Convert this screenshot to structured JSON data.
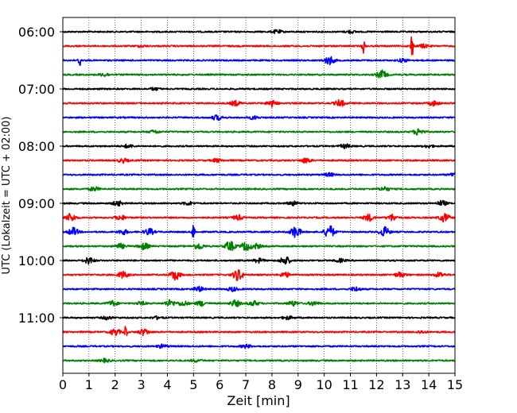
{
  "chart_data": {
    "type": "line",
    "title": "",
    "xlabel": "Zeit  [min]",
    "ylabel": "UTC (Lokalzeit = UTC + 02:00)",
    "xlim": [
      0,
      15
    ],
    "x_ticks": [
      "0",
      "1",
      "2",
      "3",
      "4",
      "5",
      "6",
      "7",
      "8",
      "9",
      "10",
      "11",
      "12",
      "13",
      "14",
      "15"
    ],
    "vertical_grid": "dotted",
    "trace_interval_minutes": 15,
    "start_time": "06:00",
    "y_tick_labels": [
      "06:00",
      "07:00",
      "08:00",
      "09:00",
      "10:00",
      "11:00"
    ],
    "trace_colors": [
      "#000000",
      "#ff0000",
      "#0000ff",
      "#008000"
    ],
    "traces": [
      {
        "label": "06:00",
        "events": [
          {
            "t": 8.2,
            "a": 2
          },
          {
            "t": 11.0,
            "a": 1.5
          }
        ]
      },
      {
        "label": "06:15",
        "events": [
          {
            "t": 11.5,
            "a": 9
          },
          {
            "t": 13.35,
            "a": 16
          },
          {
            "t": 13.8,
            "a": 2
          },
          {
            "t": 3.0,
            "a": 1
          }
        ]
      },
      {
        "label": "06:30",
        "events": [
          {
            "t": 0.65,
            "a": 9
          },
          {
            "t": 10.2,
            "a": 5
          },
          {
            "t": 13.0,
            "a": 2
          }
        ]
      },
      {
        "label": "06:45",
        "events": [
          {
            "t": 1.6,
            "a": 2
          },
          {
            "t": 12.2,
            "a": 5
          }
        ]
      },
      {
        "label": "07:00",
        "events": [
          {
            "t": 3.5,
            "a": 1.5
          }
        ]
      },
      {
        "label": "07:15",
        "events": [
          {
            "t": 6.6,
            "a": 3
          },
          {
            "t": 8.0,
            "a": 4
          },
          {
            "t": 10.6,
            "a": 4
          },
          {
            "t": 14.2,
            "a": 3
          }
        ]
      },
      {
        "label": "07:30",
        "events": [
          {
            "t": 5.9,
            "a": 3
          },
          {
            "t": 7.3,
            "a": 2
          }
        ]
      },
      {
        "label": "07:45",
        "events": [
          {
            "t": 13.6,
            "a": 4
          },
          {
            "t": 3.5,
            "a": 2
          }
        ]
      },
      {
        "label": "08:00",
        "events": [
          {
            "t": 2.5,
            "a": 2
          },
          {
            "t": 10.8,
            "a": 2.5
          },
          {
            "t": 14.0,
            "a": 1.5
          }
        ]
      },
      {
        "label": "08:15",
        "events": [
          {
            "t": 2.3,
            "a": 2.5
          },
          {
            "t": 5.9,
            "a": 2
          },
          {
            "t": 9.3,
            "a": 3
          }
        ]
      },
      {
        "label": "08:30",
        "events": [
          {
            "t": 10.2,
            "a": 2
          },
          {
            "t": 15.0,
            "a": 3
          }
        ]
      },
      {
        "label": "08:45",
        "events": [
          {
            "t": 1.2,
            "a": 2.5
          },
          {
            "t": 12.3,
            "a": 2.5
          }
        ]
      },
      {
        "label": "09:00",
        "events": [
          {
            "t": 2.1,
            "a": 3
          },
          {
            "t": 4.8,
            "a": 2
          },
          {
            "t": 8.8,
            "a": 2.5
          },
          {
            "t": 14.5,
            "a": 3
          }
        ]
      },
      {
        "label": "09:15",
        "events": [
          {
            "t": 0.3,
            "a": 5
          },
          {
            "t": 2.2,
            "a": 3
          },
          {
            "t": 6.7,
            "a": 3
          },
          {
            "t": 11.7,
            "a": 4
          },
          {
            "t": 12.6,
            "a": 4
          },
          {
            "t": 14.6,
            "a": 5
          }
        ]
      },
      {
        "label": "09:30",
        "events": [
          {
            "t": 0.4,
            "a": 5
          },
          {
            "t": 2.3,
            "a": 3
          },
          {
            "t": 3.3,
            "a": 4
          },
          {
            "t": 5.0,
            "a": 11
          },
          {
            "t": 8.9,
            "a": 7
          },
          {
            "t": 10.2,
            "a": 8
          },
          {
            "t": 12.3,
            "a": 6
          }
        ]
      },
      {
        "label": "09:45",
        "events": [
          {
            "t": 2.2,
            "a": 3
          },
          {
            "t": 3.1,
            "a": 4
          },
          {
            "t": 5.2,
            "a": 4
          },
          {
            "t": 6.4,
            "a": 6
          },
          {
            "t": 7.0,
            "a": 5
          },
          {
            "t": 7.4,
            "a": 3
          }
        ]
      },
      {
        "label": "10:00",
        "events": [
          {
            "t": 1.0,
            "a": 4
          },
          {
            "t": 7.5,
            "a": 2.5
          },
          {
            "t": 8.5,
            "a": 5
          },
          {
            "t": 10.6,
            "a": 2
          }
        ]
      },
      {
        "label": "10:15",
        "events": [
          {
            "t": 2.3,
            "a": 4
          },
          {
            "t": 4.3,
            "a": 6
          },
          {
            "t": 6.7,
            "a": 7
          },
          {
            "t": 8.5,
            "a": 3
          },
          {
            "t": 12.9,
            "a": 3
          },
          {
            "t": 14.4,
            "a": 3
          }
        ]
      },
      {
        "label": "10:30",
        "events": [
          {
            "t": 5.2,
            "a": 3
          },
          {
            "t": 6.5,
            "a": 2.5
          },
          {
            "t": 11.2,
            "a": 2.5
          }
        ]
      },
      {
        "label": "10:45",
        "events": [
          {
            "t": 1.9,
            "a": 3
          },
          {
            "t": 3.0,
            "a": 2
          },
          {
            "t": 4.1,
            "a": 4
          },
          {
            "t": 4.6,
            "a": 3
          },
          {
            "t": 5.3,
            "a": 3
          },
          {
            "t": 6.6,
            "a": 4
          },
          {
            "t": 7.3,
            "a": 3
          },
          {
            "t": 8.8,
            "a": 3
          },
          {
            "t": 9.6,
            "a": 2.5
          }
        ]
      },
      {
        "label": "11:00",
        "events": [
          {
            "t": 1.7,
            "a": 2
          },
          {
            "t": 3.6,
            "a": 1.5
          },
          {
            "t": 8.6,
            "a": 2
          }
        ]
      },
      {
        "label": "11:15",
        "events": [
          {
            "t": 2.4,
            "a": 10
          },
          {
            "t": 2.0,
            "a": 4
          },
          {
            "t": 3.1,
            "a": 4
          },
          {
            "t": 13.7,
            "a": 1.5
          }
        ]
      },
      {
        "label": "11:30",
        "events": [
          {
            "t": 3.8,
            "a": 2
          },
          {
            "t": 7.0,
            "a": 2
          }
        ]
      },
      {
        "label": "11:45",
        "events": [
          {
            "t": 1.6,
            "a": 2
          },
          {
            "t": 5.1,
            "a": 1.5
          }
        ]
      }
    ]
  }
}
